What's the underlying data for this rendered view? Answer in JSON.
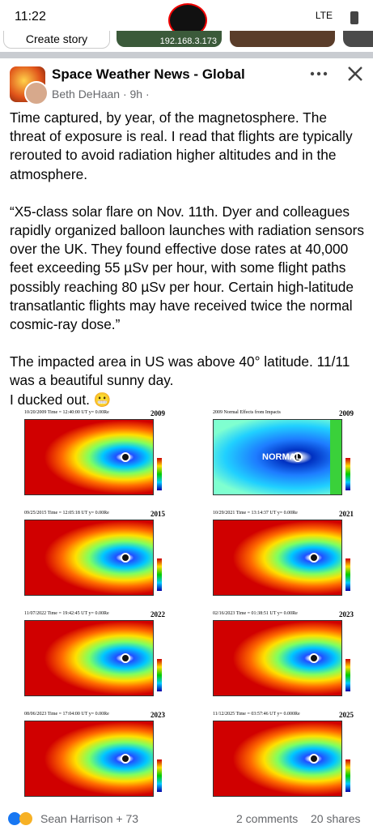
{
  "status_bar": {
    "time": "11:22",
    "network": "LTE"
  },
  "stories": [
    "Create story",
    "192.168.3.173"
  ],
  "post": {
    "page": "Space Weather News - Global",
    "author_line": "Beth DeHaan · 9h ·",
    "paragraphs": [
      "Time captured, by year, of the magnetosphere. The threat of exposure is real. I read that flights are typically rerouted to avoid radiation higher altitudes and in the atmosphere.",
      "“X5-class solar flare on Nov. 11th. Dyer and colleagues rapidly organized balloon launches with radiation sensors over the UK. They found effective dose rates at 40,000 feet exceeding 55 µSv per hour, with some flight paths possibly reaching 80 µSv per hour. Certain high-latitude transatlantic flights may have received twice the normal cosmic-ray dose.”",
      "The impacted area in US was above 40° latitude. 11/11 was a beautiful sunny day.",
      "I ducked out. 😬"
    ],
    "image_panels": [
      {
        "title": "10/20/2009 Time = 12:40:00 UT y= 0.00Re",
        "year": "2009"
      },
      {
        "title": "2009 Normal Effects from Impacts",
        "year": "2009",
        "label": "NORMAL"
      },
      {
        "title": "09/25/2015 Time = 12:05:18 UT y= 0.00Re",
        "year": "2015"
      },
      {
        "title": "10/29/2021 Time = 13:14:37 UT y= 0.00Re",
        "year": "2021"
      },
      {
        "title": "11/07/2022 Time = 19:42:45 UT y= 0.00Re",
        "year": "2022"
      },
      {
        "title": "02/16/2023 Time = 01:38:51 UT y= 0.00Re",
        "year": "2023"
      },
      {
        "title": "08/06/2023 Time = 17:04:00 UT y= 0.00Re",
        "year": "2023"
      },
      {
        "title": "11/12/2025 Time = 03:57:46 UT y= 0.000Re",
        "year": "2025"
      }
    ]
  },
  "footer": {
    "reactors": "Sean Harrison + 73",
    "comments": "2 comments",
    "shares": "20 shares"
  }
}
